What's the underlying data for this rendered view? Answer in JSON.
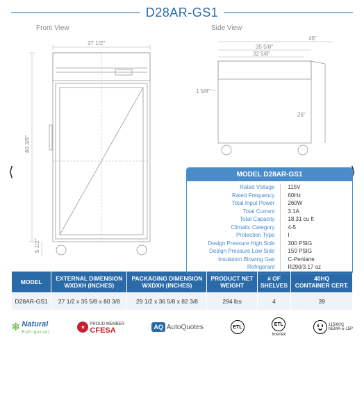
{
  "title": "D28AR-GS1",
  "views": {
    "front_label": "Front View",
    "side_label": "Side View",
    "front_width": "27 1/2\"",
    "front_height": "80 3/8\"",
    "front_foot": "5 1/2\"",
    "side_top1": "46\"",
    "side_top2": "35  5/8\"",
    "side_top3": "32  5/8\"",
    "side_left": "1  5/8\"",
    "side_body": "26\""
  },
  "spec": {
    "header": "MODEL D28AR-GS1",
    "rows": [
      {
        "l": "Rated  Voltage",
        "v": "115V"
      },
      {
        "l": "Rated  Frequency",
        "v": "60Hz"
      },
      {
        "l": "Total Input Power",
        "v": "260W"
      },
      {
        "l": "Total Current",
        "v": "3.1A"
      },
      {
        "l": "Total Capacity",
        "v": "18.31 cu ft"
      },
      {
        "l": "Climatic Category",
        "v": "4-5"
      },
      {
        "l": "Protection Type",
        "v": "I"
      },
      {
        "l": "Design Pressure High Side",
        "v": "300 PSIG"
      },
      {
        "l": "Design Pressure Low Side",
        "v": "150 PSIG"
      },
      {
        "l": "Insulation Blowing Gas",
        "v": "C-Pentane"
      },
      {
        "l": "Refrigerant",
        "v": "R290/3.17 oz"
      }
    ]
  },
  "table": {
    "headers": [
      "MODEL",
      "EXTERNAL DIMENSION\nWXDXH (INCHES)",
      "PACKAGING DIMENSION\nWXDXH (INCHES)",
      "PRODUCT NET\nWEIGHT",
      "# OF\nSHELVES",
      "40HQ\nCONTAINER CERT."
    ],
    "row": [
      "D28AR-GS1",
      "27 1/2 x 35 5/8 x 80 3/8",
      "29 1/2 x 36 5/8 x 82 3/8",
      "294 lbs",
      "4",
      "39"
    ]
  },
  "logos": {
    "natural": "Natural",
    "natural_sub": "Refrigerant",
    "cfesa_pre": "PROUD MEMBER",
    "cfesa": "CFESA",
    "aq_badge": "AQ",
    "aq": "AutoQuotes",
    "etl": "ETL",
    "intertek": "Intertek",
    "plug_spec": "115/60/1\nNEMA-5-15P"
  },
  "colors": {
    "brand": "#2a6aa8",
    "brand_light": "#4a8bc9",
    "row_bg": "#eef3f8",
    "dim": "#888"
  }
}
